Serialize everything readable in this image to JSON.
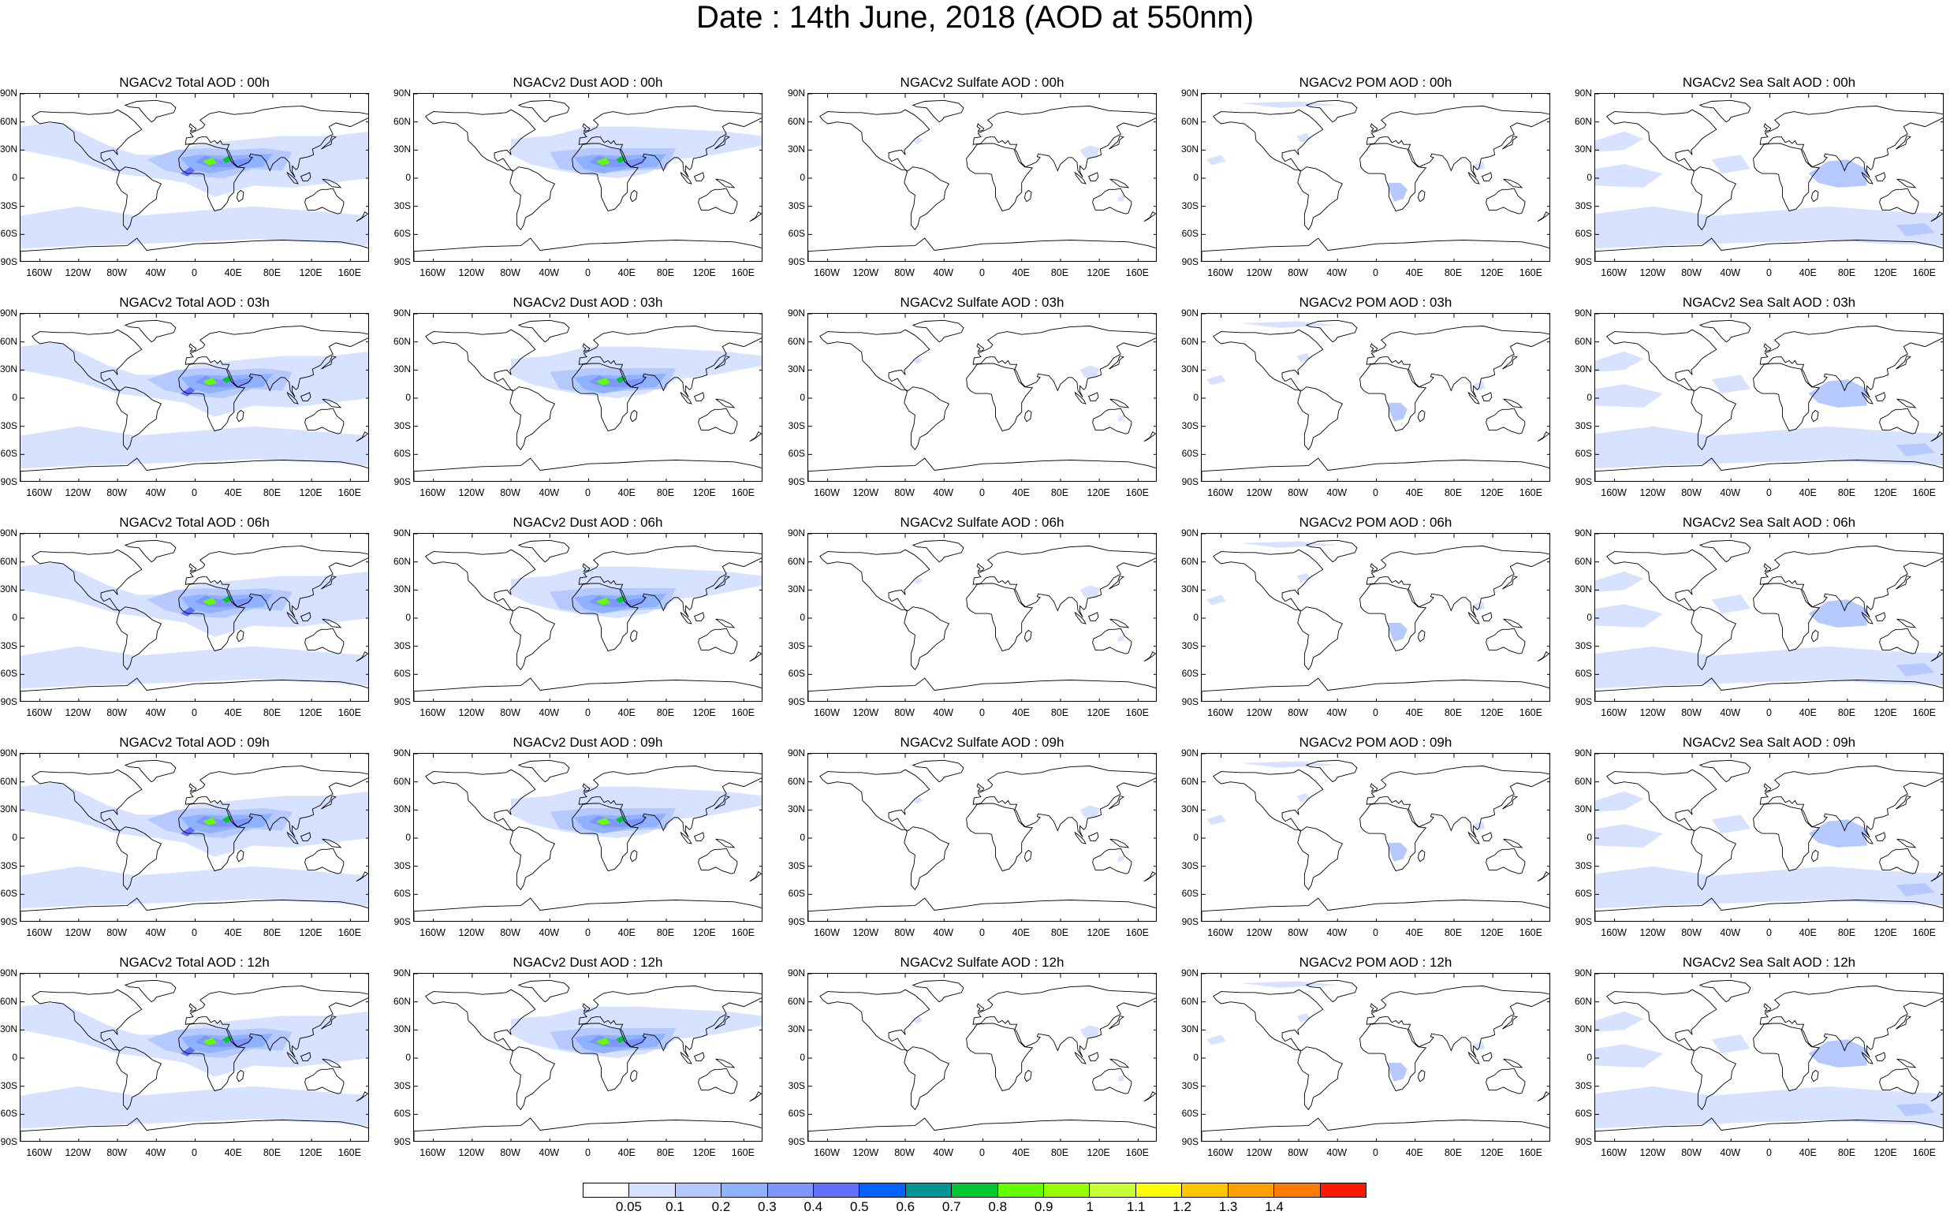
{
  "title": "Date : 14th June, 2018 (AOD at 550nm)",
  "panel_titles": [
    [
      "NGACv2 Total AOD : 00h",
      "NGACv2 Dust AOD : 00h",
      "NGACv2 Sulfate AOD : 00h",
      "NGACv2 POM AOD : 00h",
      "NGACv2 Sea Salt AOD : 00h"
    ],
    [
      "NGACv2 Total AOD : 03h",
      "NGACv2 Dust AOD : 03h",
      "NGACv2 Sulfate AOD : 03h",
      "NGACv2 POM AOD : 03h",
      "NGACv2 Sea Salt AOD : 03h"
    ],
    [
      "NGACv2 Total AOD : 06h",
      "NGACv2 Dust AOD : 06h",
      "NGACv2 Sulfate AOD : 06h",
      "NGACv2 POM AOD : 06h",
      "NGACv2 Sea Salt AOD : 06h"
    ],
    [
      "NGACv2 Total AOD : 09h",
      "NGACv2 Dust AOD : 09h",
      "NGACv2 Sulfate AOD : 09h",
      "NGACv2 POM AOD : 09h",
      "NGACv2 Sea Salt  AOD : 09h"
    ],
    [
      "NGACv2 Total AOD  : 12h",
      "NGACv2 Dust AOD : 12h",
      "NGACv2 Sulfate AOD : 12h",
      "NGACv2 POM  AOD : 12h",
      "NGACv2 Sea Salt  AOD : 12h"
    ]
  ],
  "lat_labels": [
    "90N",
    "60N",
    "30N",
    "0",
    "30S",
    "60S",
    "90S"
  ],
  "lon_labels": [
    "160W",
    "120W",
    "80W",
    "40W",
    "0",
    "40E",
    "80E",
    "120E",
    "160E"
  ],
  "colorbar": {
    "colors": [
      "#ffffff",
      "#d6e2ff",
      "#b5c9ff",
      "#8eb2ff",
      "#7f96ff",
      "#6370ff",
      "#0063ff",
      "#009696",
      "#00c633",
      "#63ff00",
      "#96ff00",
      "#c6ff33",
      "#ffff00",
      "#ffc600",
      "#ffa000",
      "#ff7c00",
      "#ff1900"
    ],
    "labels": [
      "0.05",
      "0.1",
      "0.2",
      "0.3",
      "0.4",
      "0.5",
      "0.6",
      "0.7",
      "0.8",
      "0.9",
      "1",
      "1.1",
      "1.2",
      "1.3",
      "1.4"
    ]
  }
}
